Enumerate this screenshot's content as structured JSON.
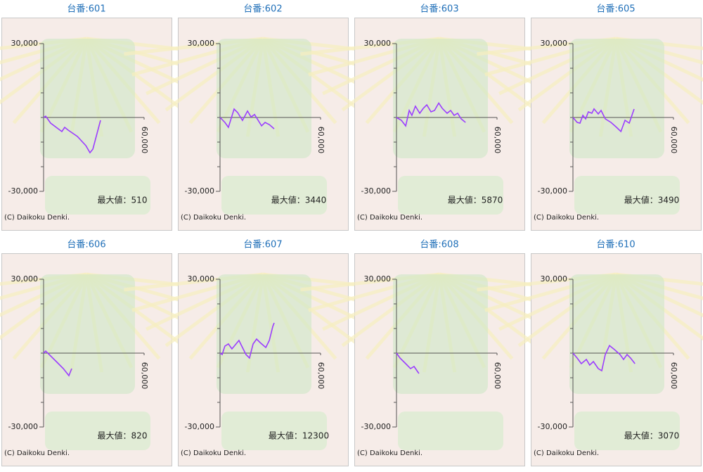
{
  "chart_data": [
    {
      "type": "line",
      "title": "台番:601",
      "xlim": [
        0,
        60000
      ],
      "ylim": [
        -30000,
        30000
      ],
      "xticks": [
        {
          "value": 60000,
          "label": "60,000"
        }
      ],
      "yticks": [
        {
          "value": 30000,
          "label": "30,000"
        },
        {
          "value": -30000,
          "label": "-30,000"
        }
      ],
      "minor_yticks": [
        20000,
        10000,
        0,
        -10000,
        -20000
      ],
      "series": [
        {
          "color": "#9b3dff",
          "x": [
            0,
            1260,
            4200,
            10900,
            12600,
            14700,
            20200,
            25200,
            27700,
            29400,
            34000
          ],
          "values": [
            0,
            510,
            -2290,
            -5720,
            -4000,
            -5150,
            -7720,
            -11440,
            -14300,
            -12870,
            -1140
          ]
        }
      ],
      "annotation": "最大値：510",
      "credit": "(C) Daikoku Denki."
    },
    {
      "type": "line",
      "title": "台番:602",
      "xlim": [
        0,
        60000
      ],
      "ylim": [
        -30000,
        30000
      ],
      "xticks": [
        {
          "value": 60000,
          "label": "60,000"
        }
      ],
      "yticks": [
        {
          "value": 30000,
          "label": "30,000"
        },
        {
          "value": -30000,
          "label": "-30,000"
        }
      ],
      "minor_yticks": [
        20000,
        10000,
        0,
        -10000,
        -20000
      ],
      "series": [
        {
          "color": "#9b3dff",
          "x": [
            0,
            2900,
            5000,
            8400,
            10500,
            13400,
            16400,
            18500,
            20600,
            24800,
            26900,
            29400,
            32300
          ],
          "values": [
            0,
            -2000,
            -4000,
            3440,
            2000,
            -1200,
            2600,
            200,
            1200,
            -3400,
            -2000,
            -2900,
            -4600
          ]
        }
      ],
      "annotation": "最大値：3440",
      "credit": "(C) Daikoku Denki."
    },
    {
      "type": "line",
      "title": "台番:603",
      "xlim": [
        0,
        60000
      ],
      "ylim": [
        -30000,
        30000
      ],
      "xticks": [
        {
          "value": 60000,
          "label": "60,000"
        }
      ],
      "yticks": [
        {
          "value": 30000,
          "label": "30,000"
        },
        {
          "value": -30000,
          "label": "-30,000"
        }
      ],
      "minor_yticks": [
        20000,
        10000,
        0,
        -10000,
        -20000
      ],
      "series": [
        {
          "color": "#9b3dff",
          "x": [
            0,
            2900,
            5500,
            7600,
            9200,
            11300,
            13900,
            16000,
            18100,
            20600,
            22700,
            25200,
            27300,
            30200,
            32300,
            34400,
            36500,
            38600,
            41200
          ],
          "values": [
            0,
            -1140,
            -3430,
            2860,
            860,
            4570,
            1710,
            3720,
            5150,
            2290,
            2860,
            5870,
            3720,
            1710,
            2860,
            860,
            1710,
            -570,
            -2000
          ]
        }
      ],
      "annotation": "最大値：5870",
      "credit": "(C) Daikoku Denki."
    },
    {
      "type": "line",
      "title": "台番:605",
      "xlim": [
        0,
        60000
      ],
      "ylim": [
        -30000,
        30000
      ],
      "xticks": [
        {
          "value": 60000,
          "label": "60,000"
        }
      ],
      "yticks": [
        {
          "value": 30000,
          "label": "30,000"
        },
        {
          "value": -30000,
          "label": "-30,000"
        }
      ],
      "minor_yticks": [
        20000,
        10000,
        0,
        -10000,
        -20000
      ],
      "series": [
        {
          "color": "#9b3dff",
          "x": [
            0,
            2500,
            4200,
            5900,
            7600,
            9200,
            11300,
            12600,
            15100,
            16800,
            19300,
            22700,
            26000,
            28600,
            31100,
            33600,
            36500
          ],
          "values": [
            0,
            -2000,
            -2290,
            860,
            -570,
            2290,
            1710,
            3490,
            1430,
            2860,
            -570,
            -2000,
            -4000,
            -5720,
            -1140,
            -2290,
            3430
          ]
        }
      ],
      "annotation": "最大値：3490",
      "credit": "(C) Daikoku Denki."
    },
    {
      "type": "line",
      "title": "台番:606",
      "xlim": [
        0,
        60000
      ],
      "ylim": [
        -30000,
        30000
      ],
      "xticks": [
        {
          "value": 60000,
          "label": "60,000"
        }
      ],
      "yticks": [
        {
          "value": 30000,
          "label": "30,000"
        },
        {
          "value": -30000,
          "label": "-30,000"
        }
      ],
      "minor_yticks": [
        20000,
        10000,
        0,
        -10000,
        -20000
      ],
      "series": [
        {
          "color": "#9b3dff",
          "x": [
            0,
            1260,
            3360,
            7600,
            11800,
            15100,
            16800
          ],
          "values": [
            0,
            820,
            -570,
            -3430,
            -6290,
            -9150,
            -6290
          ]
        }
      ],
      "annotation": "最大値：820",
      "credit": "(C) Daikoku Denki."
    },
    {
      "type": "line",
      "title": "台番:607",
      "xlim": [
        0,
        60000
      ],
      "ylim": [
        -30000,
        30000
      ],
      "xticks": [
        {
          "value": 60000,
          "label": "60,000"
        }
      ],
      "yticks": [
        {
          "value": 30000,
          "label": "30,000"
        },
        {
          "value": -30000,
          "label": "-30,000"
        }
      ],
      "minor_yticks": [
        20000,
        10000,
        0,
        -10000,
        -20000
      ],
      "series": [
        {
          "color": "#9b3dff",
          "x": [
            0,
            1260,
            2900,
            5000,
            7100,
            11300,
            13400,
            15500,
            17600,
            19700,
            21800,
            23900,
            27300,
            29400,
            31500,
            32300
          ],
          "values": [
            0,
            -570,
            2860,
            3720,
            1710,
            5150,
            2290,
            -570,
            -2000,
            3720,
            5720,
            4290,
            2290,
            5150,
            10900,
            12300
          ]
        }
      ],
      "annotation": "最大値：12300",
      "credit": "(C) Daikoku Denki."
    },
    {
      "type": "line",
      "title": "台番:608",
      "xlim": [
        0,
        60000
      ],
      "ylim": [
        -30000,
        30000
      ],
      "xticks": [
        {
          "value": 60000,
          "label": "60,000"
        }
      ],
      "yticks": [
        {
          "value": 30000,
          "label": "30,000"
        },
        {
          "value": -30000,
          "label": "-30,000"
        }
      ],
      "minor_yticks": [
        20000,
        10000,
        0,
        -10000,
        -20000
      ],
      "series": [
        {
          "color": "#9b3dff",
          "x": [
            0,
            2100,
            5500,
            8400,
            10500,
            13400
          ],
          "values": [
            0,
            -2000,
            -4290,
            -6290,
            -5430,
            -8290
          ]
        }
      ],
      "credit": "(C) Daikoku Denki."
    },
    {
      "type": "line",
      "title": "台番:610",
      "xlim": [
        0,
        60000
      ],
      "ylim": [
        -30000,
        30000
      ],
      "xticks": [
        {
          "value": 60000,
          "label": "60,000"
        }
      ],
      "yticks": [
        {
          "value": 30000,
          "label": "30,000"
        },
        {
          "value": -30000,
          "label": "-30,000"
        }
      ],
      "minor_yticks": [
        20000,
        10000,
        0,
        -10000,
        -20000
      ],
      "series": [
        {
          "color": "#9b3dff",
          "x": [
            0,
            2500,
            5000,
            8000,
            10000,
            12200,
            15100,
            17200,
            19300,
            21800,
            24800,
            28100,
            30200,
            32300,
            34400,
            37000
          ],
          "values": [
            0,
            -2000,
            -4290,
            -2570,
            -4860,
            -3430,
            -6290,
            -7150,
            -570,
            3070,
            1430,
            -570,
            -2570,
            -570,
            -2000,
            -4290
          ]
        }
      ],
      "annotation": "最大値：3070",
      "credit": "(C) Daikoku Denki."
    }
  ]
}
